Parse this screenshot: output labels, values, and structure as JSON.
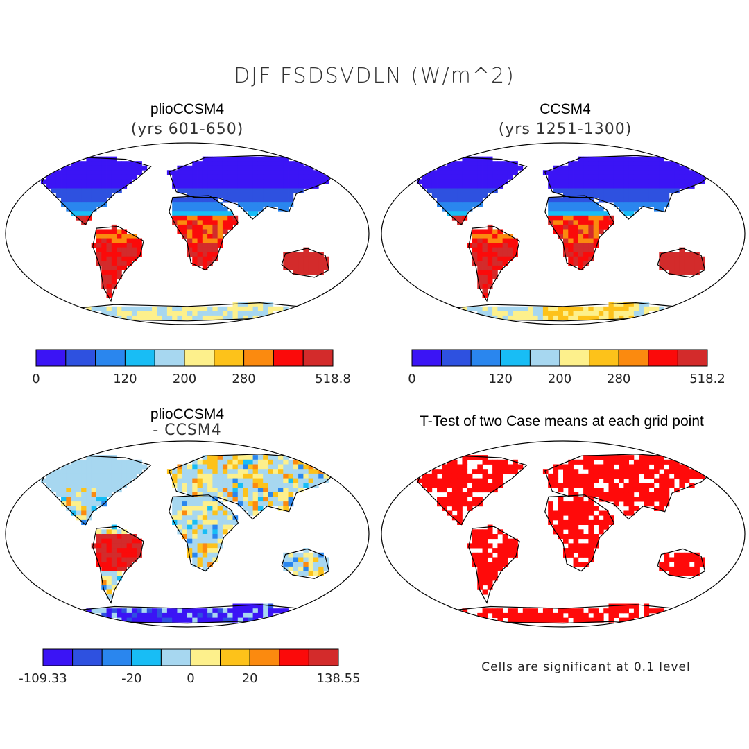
{
  "title": "DJF FSDSVDLN (W/m^2)",
  "panels": [
    {
      "id": "plio",
      "title": "plioCCSM4",
      "subtitle": "(yrs 601-650)",
      "colorbar": {
        "ticks": [
          "0",
          "120",
          "200",
          "280",
          "518.8"
        ],
        "colors": [
          "#3b14f5",
          "#2e51e0",
          "#2a86ee",
          "#18bdf5",
          "#a7d7f0",
          "#fdf08c",
          "#fdc21a",
          "#fb8a0f",
          "#fb0a0a",
          "#d32b2b"
        ]
      }
    },
    {
      "id": "ccsm",
      "title": "CCSM4",
      "subtitle": "(yrs 1251-1300)",
      "colorbar": {
        "ticks": [
          "0",
          "120",
          "200",
          "280",
          "518.2"
        ],
        "colors": [
          "#3b14f5",
          "#2e51e0",
          "#2a86ee",
          "#18bdf5",
          "#a7d7f0",
          "#fdf08c",
          "#fdc21a",
          "#fb8a0f",
          "#fb0a0a",
          "#d32b2b"
        ]
      }
    },
    {
      "id": "diff",
      "title": "plioCCSM4",
      "subtitle": "- CCSM4",
      "colorbar": {
        "ticks": [
          "-109.33",
          "-20",
          "0",
          "20",
          "138.55"
        ],
        "colors": [
          "#3b14f5",
          "#2e51e0",
          "#2a86ee",
          "#18bdf5",
          "#a7d7f0",
          "#fdf08c",
          "#fdc21a",
          "#fb8a0f",
          "#fb0a0a",
          "#d32b2b"
        ]
      }
    },
    {
      "id": "ttest",
      "title": "T-Test of two Case means at each grid point",
      "subtitle": "",
      "note": "Cells are significant at 0.1 level",
      "color": "#ff0a0a"
    }
  ]
}
